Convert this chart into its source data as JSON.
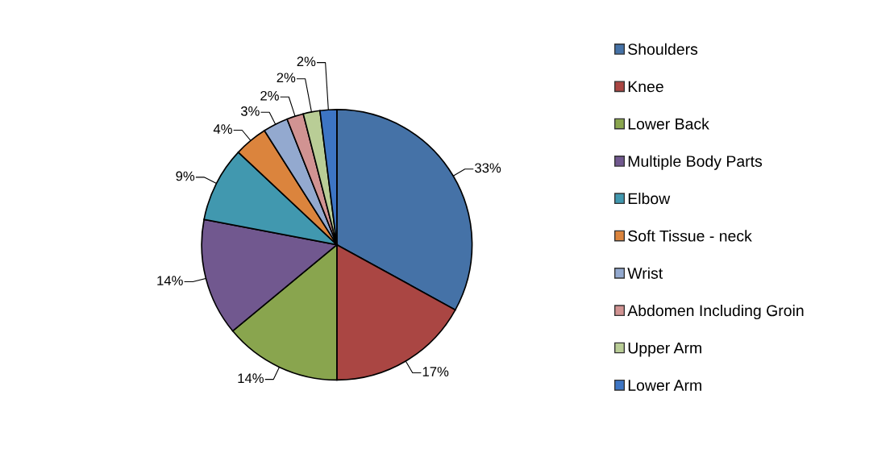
{
  "chart_data": {
    "type": "pie",
    "categories": [
      "Shoulders",
      "Knee",
      "Lower Back",
      "Multiple Body Parts",
      "Elbow",
      "Soft Tissue - neck",
      "Wrist",
      "Abdomen Including Groin",
      "Upper Arm",
      "Lower Arm"
    ],
    "values": [
      33,
      17,
      14,
      14,
      9,
      4,
      3,
      2,
      2,
      2
    ],
    "colors": [
      "#4572a7",
      "#aa4643",
      "#89a54e",
      "#71588f",
      "#4198af",
      "#db843d",
      "#93a9cf",
      "#d19392",
      "#b9cd96",
      "#3d75c4"
    ],
    "value_labels": [
      "33%",
      "17%",
      "14%",
      "14%",
      "9%",
      "4%",
      "3%",
      "2%",
      "2%",
      "2%"
    ],
    "legend": "right"
  }
}
